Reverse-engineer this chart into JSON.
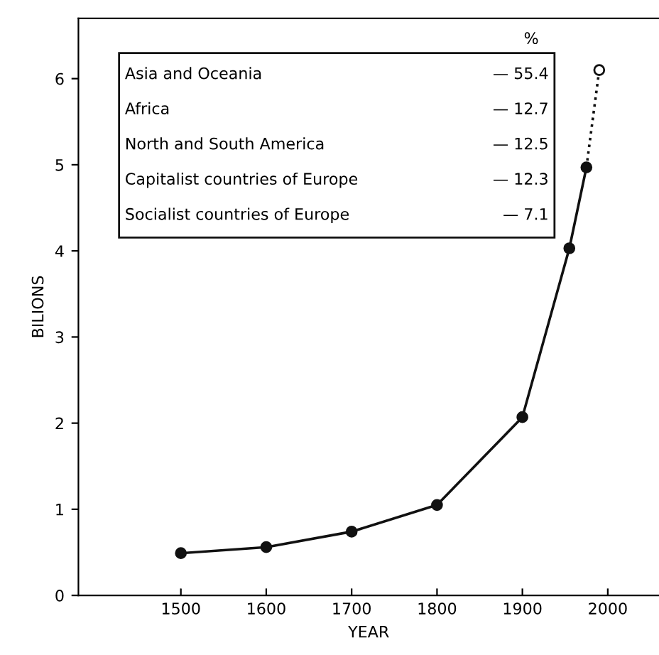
{
  "chart_data": {
    "type": "line",
    "xlabel": "YEAR",
    "ylabel": "BILIONS",
    "xlim": [
      1380,
      2060
    ],
    "xticks": [
      1500,
      1600,
      1700,
      1800,
      1900,
      2000
    ],
    "ylim": [
      0,
      6.7
    ],
    "yticks": [
      0,
      1,
      2,
      3,
      4,
      5,
      6
    ],
    "series": [
      {
        "color": "#111111",
        "x": [
          1500,
          1600,
          1700,
          1800,
          1900,
          1955,
          1975
        ],
        "values": [
          0.49,
          0.56,
          0.74,
          1.05,
          2.07,
          4.03,
          4.97
        ],
        "marker": "circle",
        "line_style": "solid"
      },
      {
        "color": "#111111",
        "x": [
          1975,
          1990
        ],
        "values": [
          4.97,
          6.1
        ],
        "marker": "circle",
        "line_style": "dotted"
      }
    ],
    "annotations": [
      "%",
      "Asia and Oceania",
      "— 55.4",
      "Africa",
      "— 12.7",
      "North and South America",
      "— 12.5",
      "Capitalist countries of Europe",
      "— 12.3",
      "Socialist countries of Europe",
      "— 7.1"
    ],
    "grid": false,
    "legend": false
  }
}
